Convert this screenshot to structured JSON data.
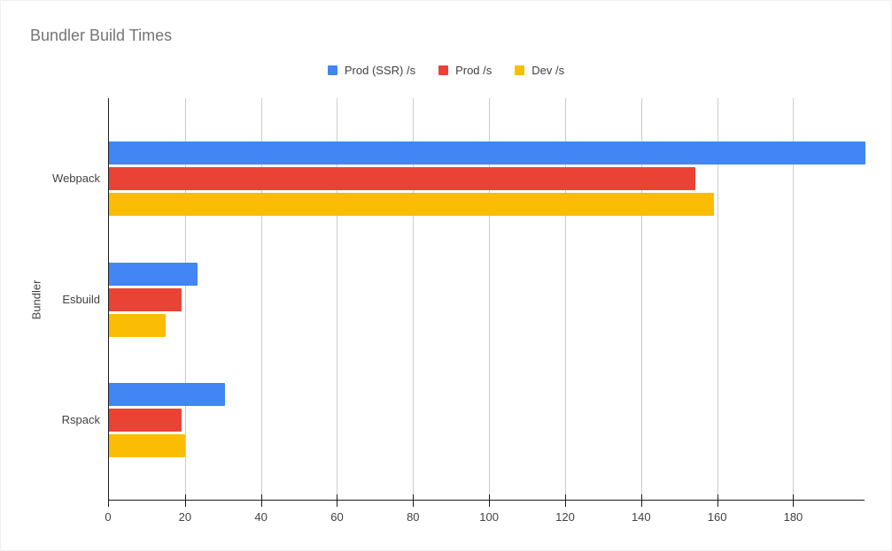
{
  "title": "Bundler Build Times",
  "chart_data": {
    "type": "bar",
    "orientation": "horizontal",
    "title": "Bundler Build Times",
    "xlabel": "",
    "ylabel": "Bundler",
    "categories": [
      "Webpack",
      "Esbuild",
      "Rspack"
    ],
    "series": [
      {
        "name": "Prod (SSR) /s",
        "color": "#4285f4",
        "values": [
          198.9,
          23.4,
          30.5
        ]
      },
      {
        "name": "Prod /s",
        "color": "#ea4335",
        "values": [
          154.2,
          19.2,
          19.0
        ]
      },
      {
        "name": "Dev /s",
        "color": "#fbbc04",
        "values": [
          159.2,
          15.0,
          20.1
        ]
      }
    ],
    "xlim": [
      0,
      199
    ],
    "xticks": [
      0,
      20,
      40,
      60,
      80,
      100,
      120,
      140,
      160,
      180
    ],
    "grid": true,
    "legend_position": "top",
    "axis_color": "#1a1a1a",
    "gridline_color": "#cccccc",
    "title_color": "#757575",
    "label_color": "#424242",
    "background_color": "#ffffff"
  }
}
